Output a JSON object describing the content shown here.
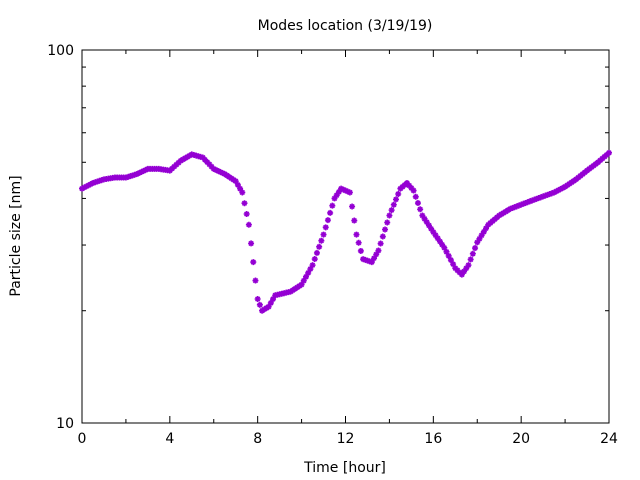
{
  "chart_data": {
    "type": "scatter",
    "title": "Modes location (3/19/19)",
    "xlabel": "Time [hour]",
    "ylabel": "Particle size [nm]",
    "xlim": [
      0,
      24
    ],
    "ylim": [
      10,
      100
    ],
    "yscale": "log",
    "grid": false,
    "legend": "none",
    "marker": "asterisk",
    "color": "#9400d3",
    "x_ticks": [
      0,
      4,
      8,
      12,
      16,
      20,
      24
    ],
    "x_tick_labels": [
      "0",
      "4",
      "8",
      "12",
      "16",
      "20",
      "24"
    ],
    "y_tick_labels": [
      "10",
      "100"
    ],
    "series": [
      {
        "points": [
          [
            0.0,
            42.5
          ],
          [
            0.5,
            44.0
          ],
          [
            1.0,
            45.0
          ],
          [
            1.5,
            45.5
          ],
          [
            2.0,
            45.5
          ],
          [
            2.5,
            46.5
          ],
          [
            3.0,
            48.0
          ],
          [
            3.5,
            48.0
          ],
          [
            4.0,
            47.5
          ],
          [
            4.5,
            50.5
          ],
          [
            5.0,
            52.5
          ],
          [
            5.5,
            51.5
          ],
          [
            6.0,
            48.0
          ],
          [
            6.5,
            46.5
          ],
          [
            7.0,
            44.5
          ],
          [
            7.3,
            41.5
          ],
          [
            7.6,
            34.0
          ],
          [
            7.8,
            27.0
          ],
          [
            8.0,
            21.5
          ],
          [
            8.2,
            20.0
          ],
          [
            8.5,
            20.5
          ],
          [
            8.8,
            22.0
          ],
          [
            9.5,
            22.5
          ],
          [
            10.0,
            23.5
          ],
          [
            10.5,
            26.5
          ],
          [
            11.0,
            32.0
          ],
          [
            11.5,
            40.0
          ],
          [
            11.8,
            42.5
          ],
          [
            12.2,
            41.5
          ],
          [
            12.5,
            32.0
          ],
          [
            12.8,
            27.5
          ],
          [
            13.2,
            27.0
          ],
          [
            13.5,
            29.0
          ],
          [
            14.0,
            36.0
          ],
          [
            14.5,
            42.5
          ],
          [
            14.8,
            44.0
          ],
          [
            15.1,
            42.0
          ],
          [
            15.5,
            36.0
          ],
          [
            16.0,
            32.5
          ],
          [
            16.5,
            29.5
          ],
          [
            17.0,
            26.0
          ],
          [
            17.3,
            25.0
          ],
          [
            17.6,
            26.5
          ],
          [
            18.0,
            30.5
          ],
          [
            18.5,
            34.0
          ],
          [
            19.0,
            36.0
          ],
          [
            19.5,
            37.5
          ],
          [
            20.0,
            38.5
          ],
          [
            20.5,
            39.5
          ],
          [
            21.0,
            40.5
          ],
          [
            21.5,
            41.5
          ],
          [
            22.0,
            43.0
          ],
          [
            22.5,
            45.0
          ],
          [
            23.0,
            47.5
          ],
          [
            23.5,
            50.0
          ],
          [
            24.0,
            53.0
          ]
        ]
      }
    ]
  }
}
